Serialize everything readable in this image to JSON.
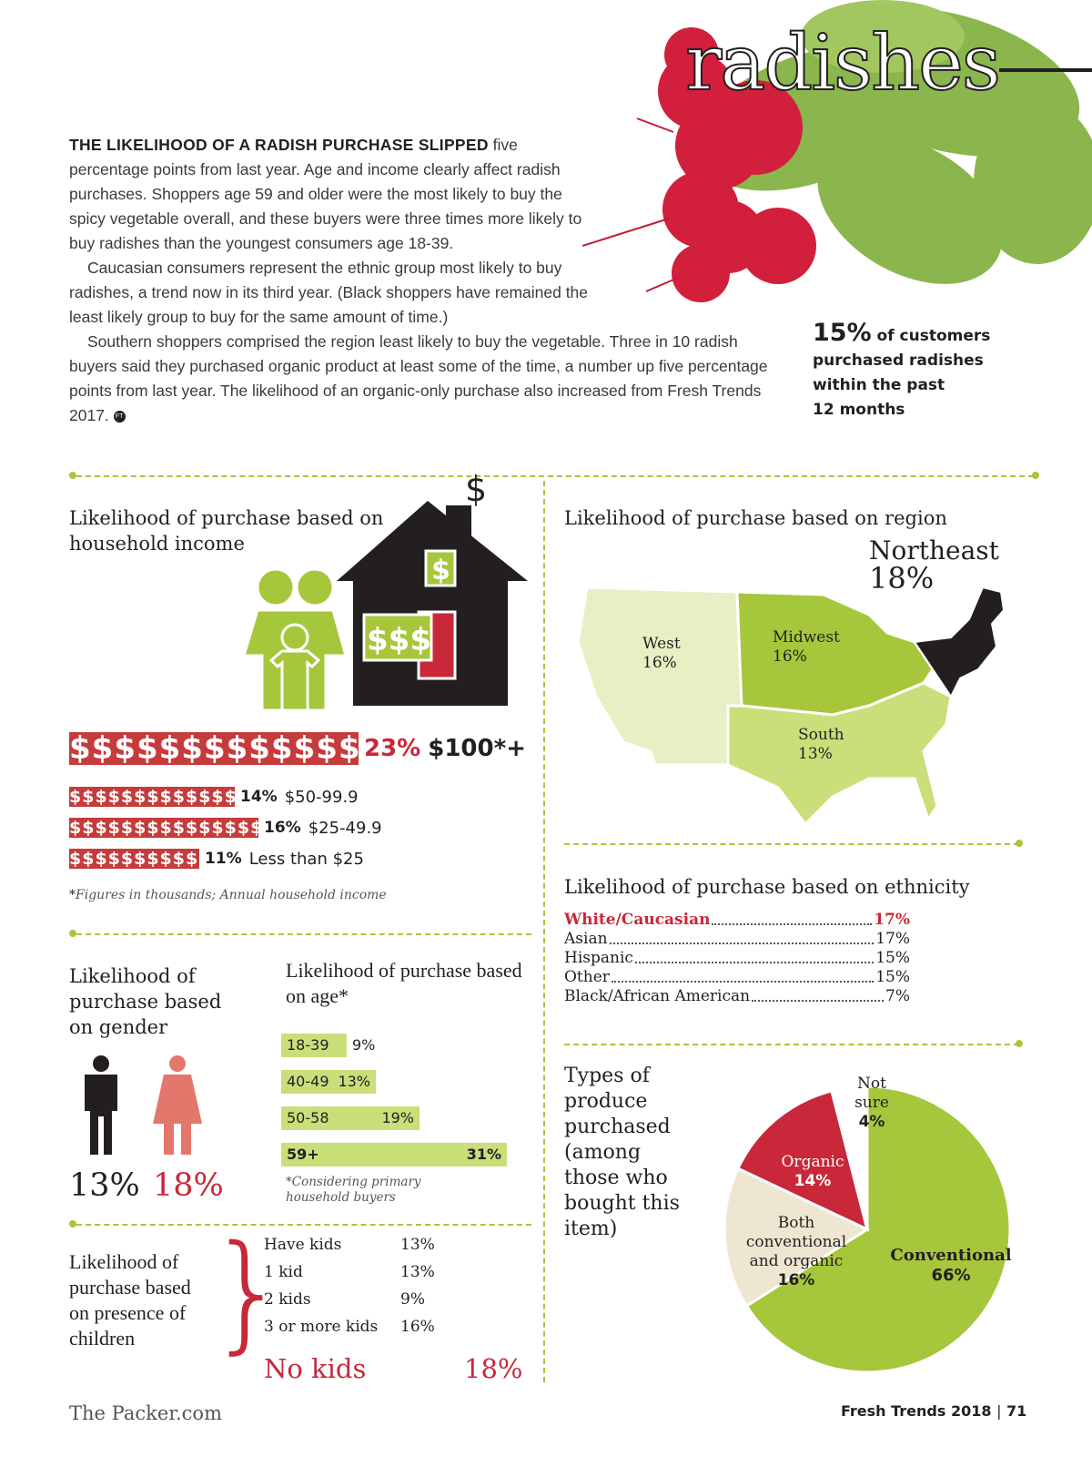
{
  "title": "radishes",
  "intro": {
    "lead": "THE LIKELIHOOD OF A RADISH PURCHASE SLIPPED",
    "p1": " five percentage points from last year. Age and income clearly affect radish purchases. Shoppers age 59 and older were the most likely to buy the spicy vegetable overall, and these buyers were three times more likely to buy radishes than the youngest consumers age 18-39.",
    "p2": "Caucasian consumers represent the ethnic group most likely to buy radishes, a trend now in its third year. (Black shoppers have remained the least likely group to buy for the same amount of time.)",
    "p3": "Southern shoppers comprised the region least likely to buy the vegetable. Three in 10 radish buyers said they purchased organic product at least some of the time, a number up five percentage points from last year. The likelihood of an organic-only purchase also increased from Fresh Trends 2017.",
    "end_mark": "FT"
  },
  "callout": {
    "big": "15%",
    "l1": " of customers",
    "l2": "purchased radishes",
    "l3": "within the past",
    "l4": "12 months"
  },
  "income": {
    "heading": "Likelihood of purchase based on household income",
    "rows": [
      {
        "pct": "23%",
        "label": "$100*+",
        "value": 23
      },
      {
        "pct": "14%",
        "label": "$50-99.9",
        "value": 14
      },
      {
        "pct": "16%",
        "label": "$25-49.9",
        "value": 16
      },
      {
        "pct": "11%",
        "label": "Less than $25",
        "value": 11
      }
    ],
    "footnote_star": "*",
    "footnote": "Figures in thousands; Annual household income"
  },
  "region": {
    "heading": "Likelihood of purchase based on region",
    "northeast": {
      "name": "Northeast",
      "pct": "18%"
    },
    "west": {
      "name": "West",
      "pct": "16%"
    },
    "midwest": {
      "name": "Midwest",
      "pct": "16%"
    },
    "south": {
      "name": "South",
      "pct": "13%"
    },
    "colors": {
      "northeast": "#231f20",
      "midwest": "#a6c73b",
      "south": "#c8df7a",
      "west": "#e6f0c4"
    }
  },
  "ethnicity": {
    "heading": "Likelihood of purchase based on ethnicity",
    "rows": [
      {
        "name": "White/Caucasian",
        "pct": "17%"
      },
      {
        "name": "Asian",
        "pct": "17%"
      },
      {
        "name": "Hispanic",
        "pct": "15%"
      },
      {
        "name": "Other",
        "pct": "15%"
      },
      {
        "name": "Black/African American",
        "pct": "7%"
      }
    ]
  },
  "gender": {
    "heading": "Likelihood of purchase based on gender",
    "male": "13%",
    "female": "18%"
  },
  "age": {
    "heading": "Likelihood of purchase based on age*",
    "rows": [
      {
        "range": "18-39",
        "pct": "9%",
        "value": 9
      },
      {
        "range": "40-49",
        "pct": "13%",
        "value": 13
      },
      {
        "range": "50-58",
        "pct": "19%",
        "value": 19
      },
      {
        "range": "59+",
        "pct": "31%",
        "value": 31
      }
    ],
    "footnote": "*Considering primary household buyers"
  },
  "children": {
    "heading": "Likelihood of purchase based on presence of children",
    "rows": [
      {
        "label": "Have kids",
        "pct": "13%"
      },
      {
        "label": "1 kid",
        "pct": "13%"
      },
      {
        "label": "2 kids",
        "pct": "9%"
      },
      {
        "label": "3 or more kids",
        "pct": "16%"
      }
    ],
    "no_kids": {
      "label": "No kids",
      "pct": "18%"
    }
  },
  "produce": {
    "heading": "Types of produce purchased (among those who bought this item)"
  },
  "chart_data": {
    "type": "pie",
    "slices": [
      {
        "name": "Conventional",
        "value": 66,
        "color": "#a6c73b"
      },
      {
        "name": "Both conventional and organic",
        "value": 16,
        "color": "#efe6d2"
      },
      {
        "name": "Organic",
        "value": 14,
        "color": "#c8283a"
      },
      {
        "name": "Not sure",
        "value": 4,
        "color": "#ffffff"
      }
    ]
  },
  "pie_labels": {
    "conventional": {
      "name": "Conventional",
      "pct": "66%"
    },
    "both": {
      "l1": "Both",
      "l2": "conventional",
      "l3": "and organic",
      "pct": "16%"
    },
    "organic": {
      "name": "Organic",
      "pct": "14%"
    },
    "notsure": {
      "l1": "Not",
      "l2": "sure",
      "pct": "4%"
    }
  },
  "footer": {
    "site": "The Packer.com",
    "pub": "Fresh Trends 2018",
    "sep": "|",
    "page": "71"
  }
}
